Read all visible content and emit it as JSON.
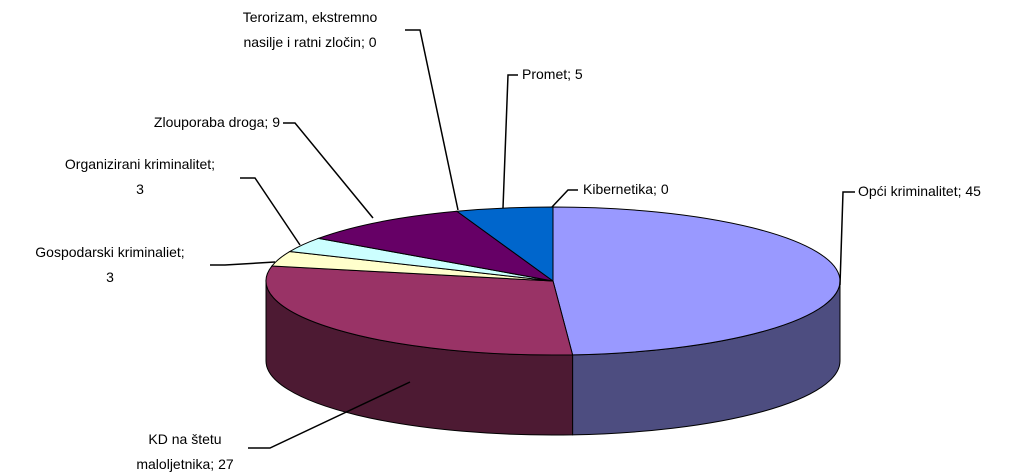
{
  "chart_data": {
    "type": "pie3d",
    "value_labels": [
      "Opći kriminalitet; 45",
      "KD na štetu\nmaloljetnika; 27",
      "Gospodarski kriminaliet;\n3",
      "Organizirani kriminalitet;\n3",
      "Zlouporaba droga; 9",
      "Terorizam, ekstremno\nnasilje i ratni zločin; 0",
      "Promet; 5",
      "Kibernetika; 0"
    ],
    "values": [
      45,
      27,
      3,
      3,
      9,
      0,
      5,
      0
    ],
    "colors": [
      "#9999ff",
      "#993366",
      "#ffffcc",
      "#ccffff",
      "#660066",
      "#ffffff",
      "#0066cc",
      "#ffffff"
    ]
  }
}
